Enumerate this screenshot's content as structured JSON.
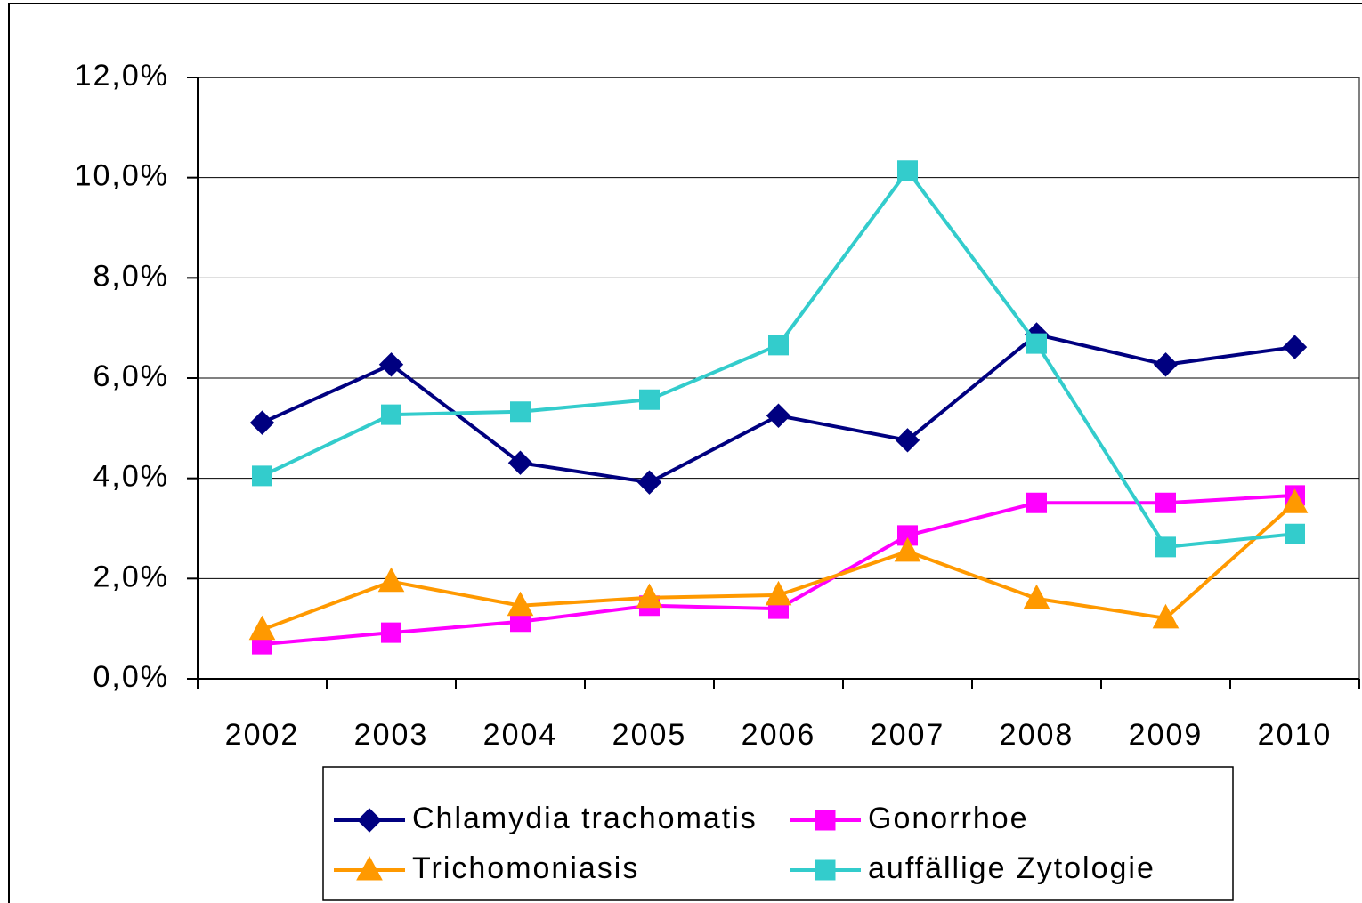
{
  "chart_data": {
    "type": "line",
    "categories": [
      "2002",
      "2003",
      "2004",
      "2005",
      "2006",
      "2007",
      "2008",
      "2009",
      "2010"
    ],
    "series": [
      {
        "name": "Chlamydia trachomatis",
        "color": "#000080",
        "marker": "diamond",
        "values": [
          5.11,
          6.27,
          4.31,
          3.92,
          5.25,
          4.76,
          6.87,
          6.27,
          6.62
        ]
      },
      {
        "name": "Gonorrhoe",
        "color": "#ff00ff",
        "marker": "square",
        "values": [
          0.69,
          0.92,
          1.14,
          1.46,
          1.4,
          2.86,
          3.51,
          3.51,
          3.66
        ]
      },
      {
        "name": "Trichomoniasis",
        "color": "#ff9900",
        "marker": "triangle",
        "values": [
          0.98,
          1.94,
          1.46,
          1.62,
          1.67,
          2.54,
          1.6,
          1.21,
          3.51
        ]
      },
      {
        "name": "auffällige Zytologie",
        "color": "#33cccc",
        "marker": "square",
        "values": [
          4.05,
          5.27,
          5.33,
          5.57,
          6.66,
          10.14,
          6.69,
          2.63,
          2.89
        ]
      }
    ],
    "ylim": [
      0,
      12
    ],
    "yticks": [
      {
        "value": 0,
        "label": "0,0%"
      },
      {
        "value": 2,
        "label": "2,0%"
      },
      {
        "value": 4,
        "label": "4,0%"
      },
      {
        "value": 6,
        "label": "6,0%"
      },
      {
        "value": 8,
        "label": "8,0%"
      },
      {
        "value": 10,
        "label": "10,0%"
      },
      {
        "value": 12,
        "label": "12,0%"
      }
    ],
    "grid": true,
    "legend": "bottom"
  }
}
